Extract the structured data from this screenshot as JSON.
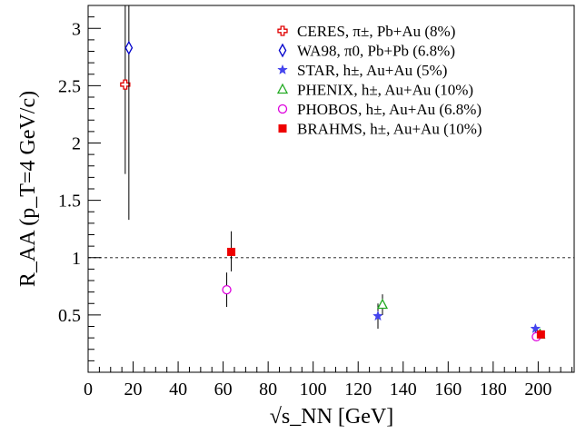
{
  "chart_data": {
    "type": "scatter",
    "xlabel": "√s_NN [GeV]",
    "ylabel": "R_AA (p_T=4 GeV/c)",
    "xlim": [
      0,
      216
    ],
    "ylim": [
      0,
      3.2
    ],
    "x_ticks": [
      0,
      20,
      40,
      60,
      80,
      100,
      120,
      140,
      160,
      180,
      200
    ],
    "y_ticks": [
      0.5,
      1,
      1.5,
      2,
      2.5,
      3
    ],
    "x_tick_labels": [
      "0",
      "20",
      "40",
      "60",
      "80",
      "100",
      "120",
      "140",
      "160",
      "180",
      "200"
    ],
    "y_tick_labels": [
      "0.5",
      "1",
      "1.5",
      "2",
      "2.5",
      "3"
    ],
    "reference_line": {
      "y": 1,
      "style": "dotted"
    },
    "legend_position": "top-right",
    "series": [
      {
        "name": "CERES, π±, Pb+Au (8%)",
        "marker": "open-cross",
        "color": "#e00000",
        "points": [
          {
            "x": 17.3,
            "y": 2.51,
            "err_low": 1.73,
            "err_high": 3.2
          }
        ]
      },
      {
        "name": "WA98, π0, Pb+Pb (6.8%)",
        "marker": "open-diamond",
        "color": "#0000cc",
        "points": [
          {
            "x": 17.3,
            "y": 2.83,
            "err_low": 1.33,
            "err_high": 3.2
          }
        ]
      },
      {
        "name": "STAR, h±, Au+Au (5%)",
        "marker": "star",
        "color": "#4444ee",
        "points": [
          {
            "x": 130,
            "y": 0.49,
            "err_low": 0.38,
            "err_high": 0.6
          },
          {
            "x": 200,
            "y": 0.38,
            "err_low": 0.35,
            "err_high": 0.41
          }
        ]
      },
      {
        "name": "PHENIX, h±, Au+Au (10%)",
        "marker": "open-triangle",
        "color": "#22aa22",
        "points": [
          {
            "x": 130,
            "y": 0.59,
            "err_low": 0.5,
            "err_high": 0.68
          },
          {
            "x": 200,
            "y": 0.33,
            "err_low": 0.31,
            "err_high": 0.35
          }
        ]
      },
      {
        "name": "PHOBOS, h±, Au+Au (6.8%)",
        "marker": "open-circle",
        "color": "#dd00dd",
        "points": [
          {
            "x": 62.4,
            "y": 0.72,
            "err_low": 0.57,
            "err_high": 0.87
          },
          {
            "x": 200,
            "y": 0.31,
            "err_low": 0.29,
            "err_high": 0.33
          }
        ]
      },
      {
        "name": "BRAHMS, h±, Au+Au (10%)",
        "marker": "filled-square",
        "color": "#ee0000",
        "points": [
          {
            "x": 62.4,
            "y": 1.05,
            "err_low": 0.88,
            "err_high": 1.23
          },
          {
            "x": 200,
            "y": 0.33,
            "err_low": 0.31,
            "err_high": 0.35
          }
        ]
      }
    ]
  }
}
